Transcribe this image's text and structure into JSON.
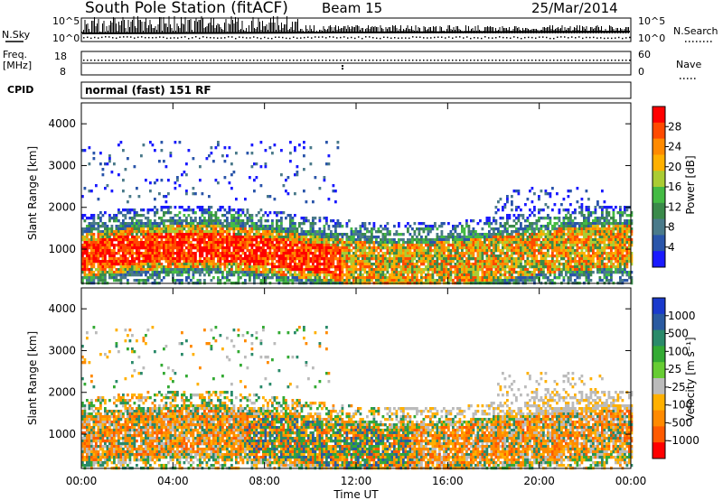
{
  "header": {
    "station": "South Pole Station (fitACF)",
    "beam": "Beam 15",
    "date": "25/Mar/2014"
  },
  "status_panels": {
    "nsky_label": "N.Sky",
    "nsky_ticks": [
      "10^5",
      "10^0"
    ],
    "nsearch_label": "N.Search",
    "nsearch_ticks": [
      "10^5",
      "10^0"
    ],
    "freq_label_1": "Freq.",
    "freq_label_2": "[MHz]",
    "freq_ticks": [
      "18",
      "8"
    ],
    "nave_label": "Nave",
    "nave_ticks": [
      "60",
      "0"
    ],
    "cpid_label": "CPID",
    "cpid_value": "normal (fast) 151 RF"
  },
  "chart_data": [
    {
      "type": "heatmap",
      "name": "power-panel",
      "ylabel": "Slant Range [km]",
      "xlabel": "",
      "ylim": [
        180,
        4500
      ],
      "yticks": [
        1000,
        2000,
        3000,
        4000
      ],
      "xticks": [
        "00:00",
        "04:00",
        "08:00",
        "12:00",
        "16:00",
        "20:00",
        "00:00"
      ],
      "colorbar": {
        "label": "Power [dB]",
        "ticks": [
          "28",
          "24",
          "20",
          "16",
          "12",
          "8",
          "4"
        ],
        "colors": [
          "#ff0000",
          "#ff4a00",
          "#ff8a00",
          "#ffb000",
          "#aacc33",
          "#44bb44",
          "#3a8a4a",
          "#4a7a8a",
          "#2a55aa",
          "#1a1aff"
        ]
      }
    },
    {
      "type": "heatmap",
      "name": "velocity-panel",
      "ylabel": "Slant Range [km]",
      "xlabel": "Time UT",
      "ylim": [
        180,
        4500
      ],
      "yticks": [
        1000,
        2000,
        3000,
        4000
      ],
      "xticks": [
        "00:00",
        "04:00",
        "08:00",
        "12:00",
        "16:00",
        "20:00",
        "00:00"
      ],
      "colorbar": {
        "label": "Velocity [m s⁻¹]",
        "ticks": [
          "1000",
          "500",
          "100",
          "25",
          "-25",
          "-100",
          "-500",
          "-1000"
        ],
        "colors": [
          "#1a3acc",
          "#2a5aa0",
          "#2a8a6a",
          "#33aa33",
          "#66cc33",
          "#bbbbbb",
          "#ffb000",
          "#ff8a00",
          "#ff5a00",
          "#ff0000"
        ]
      }
    }
  ]
}
